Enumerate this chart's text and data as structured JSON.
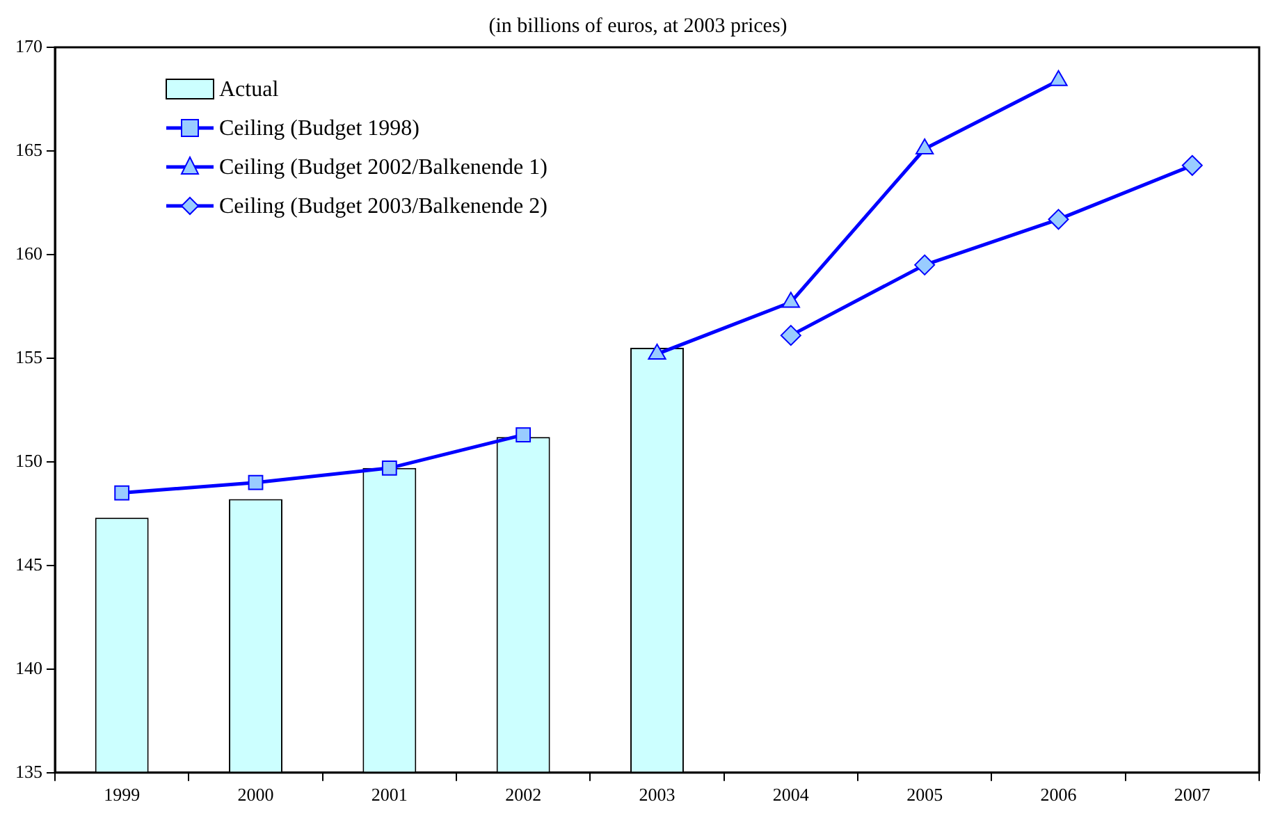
{
  "chart_data": {
    "type": "bar",
    "title": "(in billions of euros, at 2003 prices)",
    "categories": [
      "1999",
      "2000",
      "2001",
      "2002",
      "2003",
      "2004",
      "2005",
      "2006",
      "2007"
    ],
    "series": [
      {
        "name": "Actual",
        "color": "#ccffff",
        "values": [
          147.3,
          148.2,
          149.7,
          151.2,
          155.5,
          null,
          null,
          null,
          null
        ]
      },
      {
        "name": "Ceiling (Budget 1998)",
        "type": "line",
        "marker": "square",
        "color": "#0000ff",
        "values": [
          148.5,
          149.0,
          149.7,
          151.3,
          null,
          null,
          null,
          null,
          null
        ]
      },
      {
        "name": "Ceiling (Budget 2002/Balkenende 1)",
        "type": "line",
        "marker": "triangle",
        "color": "#0000ff",
        "values": [
          null,
          null,
          null,
          null,
          155.2,
          157.7,
          165.1,
          168.4,
          null
        ]
      },
      {
        "name": "Ceiling (Budget 2003/Balkenende 2)",
        "type": "line",
        "marker": "diamond",
        "color": "#0000ff",
        "values": [
          null,
          null,
          null,
          null,
          null,
          156.1,
          159.5,
          161.7,
          164.3
        ]
      }
    ],
    "ylim": [
      135,
      170
    ],
    "yticks": [
      135,
      140,
      145,
      150,
      155,
      160,
      165,
      170
    ],
    "grid": false,
    "legend": "top left"
  }
}
